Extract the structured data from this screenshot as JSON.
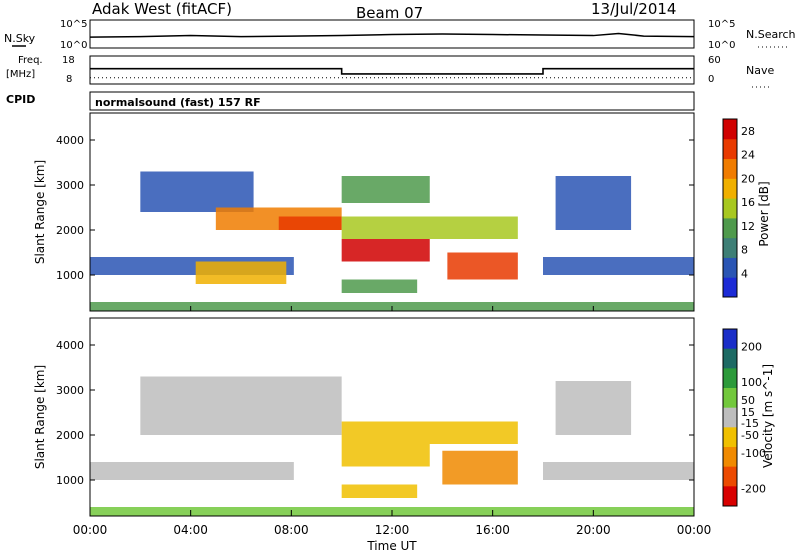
{
  "header": {
    "radar": "Adak West (fitACF)",
    "beam": "Beam 07",
    "date": "13/Jul/2014"
  },
  "status_panels": {
    "nsky_label": "N.Sky",
    "nsearch_label": "N.Search",
    "noise_ticks": [
      "10^5",
      "10^0"
    ],
    "freq_label_1": "Freq.",
    "freq_label_2": "[MHz]",
    "freq_ticks": [
      "18",
      "8"
    ],
    "nave_label": "Nave",
    "nave_ticks": [
      "60",
      "0"
    ],
    "cpid_label": "CPID",
    "cpid_value": "normalsound (fast) 157 RF"
  },
  "colors": {
    "power_scale": [
      "#1c2bd6",
      "#2a55b4",
      "#3e7f76",
      "#4f9a4c",
      "#a8c820",
      "#f0b000",
      "#f07c00",
      "#e83a00",
      "#d00000"
    ],
    "velocity_scale": [
      "#1a2ec8",
      "#1d6a64",
      "#2c9a3a",
      "#72c83c",
      "#bdbdbd",
      "#f0c000",
      "#f08a00",
      "#ec4a00",
      "#d80000"
    ]
  },
  "chart_data": [
    {
      "type": "line",
      "title": "",
      "ylabel": "N.Sky",
      "y2label": "N.Search",
      "ylim": [
        0,
        5
      ],
      "yscale": "log10",
      "y_ticks": [
        "10^0",
        "10^5"
      ],
      "x": [
        0,
        2,
        4,
        6,
        8,
        10,
        12,
        14,
        16,
        18,
        20,
        21,
        22,
        24
      ],
      "series": [
        {
          "name": "N.Sky",
          "values": [
            1.9,
            2.0,
            2.2,
            2.0,
            2.1,
            2.2,
            2.4,
            2.5,
            2.4,
            2.3,
            2.2,
            2.6,
            2.1,
            2.0
          ]
        }
      ]
    },
    {
      "type": "line",
      "ylabel": "Freq. [MHz]",
      "y2label": "Nave",
      "ylim": [
        8,
        18
      ],
      "y2lim": [
        0,
        60
      ],
      "x": [
        0,
        10,
        10,
        18,
        18,
        24
      ],
      "series": [
        {
          "name": "Freq.",
          "values": [
            13.5,
            13.5,
            11.5,
            11.5,
            13.5,
            13.5
          ]
        },
        {
          "name": "Nave",
          "values": [
            12,
            12,
            12,
            12,
            12,
            12
          ]
        }
      ]
    },
    {
      "type": "heatmap",
      "ylabel": "Slant Range [km]",
      "colorbar_label": "Power [dB]",
      "colorbar_ticks": [
        4,
        8,
        12,
        16,
        20,
        24,
        28
      ],
      "colorbar_range": [
        0,
        30
      ],
      "xlim": [
        0,
        24
      ],
      "ylim": [
        200,
        4600
      ],
      "y_ticks": [
        1000,
        2000,
        3000,
        4000
      ],
      "echo_regions": [
        {
          "t0": 0.0,
          "t1": 8.1,
          "r0": 1000,
          "r1": 1400,
          "power": 6
        },
        {
          "t0": 4.2,
          "t1": 7.8,
          "r0": 800,
          "r1": 1300,
          "power": 18
        },
        {
          "t0": 2.0,
          "t1": 6.5,
          "r0": 2400,
          "r1": 3300,
          "power": 6
        },
        {
          "t0": 5.0,
          "t1": 10.0,
          "r0": 2000,
          "r1": 2500,
          "power": 20
        },
        {
          "t0": 7.5,
          "t1": 10.0,
          "r0": 2000,
          "r1": 2300,
          "power": 26
        },
        {
          "t0": 10.0,
          "t1": 13.5,
          "r0": 1300,
          "r1": 1800,
          "power": 28
        },
        {
          "t0": 10.0,
          "t1": 17.0,
          "r0": 1800,
          "r1": 2300,
          "power": 16
        },
        {
          "t0": 10.0,
          "t1": 13.5,
          "r0": 2600,
          "r1": 3200,
          "power": 12
        },
        {
          "t0": 14.2,
          "t1": 17.0,
          "r0": 900,
          "r1": 1500,
          "power": 26
        },
        {
          "t0": 10.0,
          "t1": 13.0,
          "r0": 600,
          "r1": 900,
          "power": 10
        },
        {
          "t0": 18.0,
          "t1": 24.0,
          "r0": 1000,
          "r1": 1400,
          "power": 4
        },
        {
          "t0": 18.5,
          "t1": 21.5,
          "r0": 2000,
          "r1": 3200,
          "power": 6
        },
        {
          "t0": 0.0,
          "t1": 24.0,
          "r0": 200,
          "r1": 400,
          "power": 10
        }
      ]
    },
    {
      "type": "heatmap",
      "ylabel": "Slant Range [km]",
      "xlabel": "Time UT",
      "colorbar_label": "Velocity [m s^-1]",
      "colorbar_ticks": [
        200,
        100,
        50,
        15,
        -15,
        -50,
        -100,
        -200
      ],
      "colorbar_range": [
        -250,
        250
      ],
      "xlim": [
        0,
        24
      ],
      "ylim": [
        200,
        4600
      ],
      "x_ticks": [
        "00:00",
        "04:00",
        "08:00",
        "12:00",
        "16:00",
        "20:00",
        "00:00"
      ],
      "y_ticks": [
        1000,
        2000,
        3000,
        4000
      ],
      "echo_regions": [
        {
          "t0": 0.0,
          "t1": 8.1,
          "r0": 1000,
          "r1": 1400,
          "velocity": 0
        },
        {
          "t0": 2.0,
          "t1": 10.0,
          "r0": 2000,
          "r1": 3300,
          "velocity": 0
        },
        {
          "t0": 10.0,
          "t1": 13.5,
          "r0": 1300,
          "r1": 1800,
          "velocity": -80
        },
        {
          "t0": 10.0,
          "t1": 17.0,
          "r0": 1800,
          "r1": 2300,
          "velocity": -40
        },
        {
          "t0": 14.0,
          "t1": 17.0,
          "r0": 900,
          "r1": 1650,
          "velocity": -90
        },
        {
          "t0": 10.0,
          "t1": 13.0,
          "r0": 600,
          "r1": 900,
          "velocity": -60
        },
        {
          "t0": 18.0,
          "t1": 24.0,
          "r0": 1000,
          "r1": 1400,
          "velocity": 0
        },
        {
          "t0": 18.5,
          "t1": 21.5,
          "r0": 2000,
          "r1": 3200,
          "velocity": 0
        },
        {
          "t0": 0.0,
          "t1": 24.0,
          "r0": 200,
          "r1": 400,
          "velocity": 40
        }
      ]
    }
  ]
}
